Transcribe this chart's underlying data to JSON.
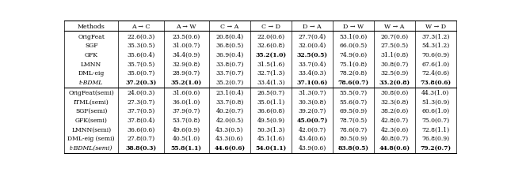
{
  "col_headers": [
    "Methods",
    "A → C",
    "A → W",
    "C → A",
    "C → D",
    "D → A",
    "D → W",
    "W → A",
    "W → D"
  ],
  "rows_top": [
    [
      "OrigFeat",
      "22.6(0.3)",
      "23.5(0.6)",
      "20.8(0.4)",
      "22.0(0.6)",
      "27.7(0.4)",
      "53.1(0.6)",
      "20.7(0.6)",
      "37.3(1.2)"
    ],
    [
      "SGF",
      "35.3(0.5)",
      "31.0(0.7)",
      "36.8(0.5)",
      "32.6(0.8)",
      "32.0(0.4)",
      "66.0(0.5)",
      "27.5(0.5)",
      "54.3(1.2)"
    ],
    [
      "GFK",
      "35.6(0.4)",
      "34.4(0.9)",
      "36.9(0.4)",
      "35.2(1.0)",
      "32.5(0.5)",
      "74.9(0.6)",
      "31.1(0.8)",
      "70.6(0.9)"
    ],
    [
      "LMNN",
      "35.7(0.5)",
      "32.9(0.8)",
      "33.8(0.7)",
      "31.5(1.6)",
      "33.7(0.4)",
      "75.1(0.8)",
      "30.8(0.7)",
      "67.6(1.0)"
    ],
    [
      "DML-eig",
      "35.0(0.7)",
      "28.9(0.7)",
      "33.7(0.7)",
      "32.7(1.3)",
      "33.4(0.3)",
      "78.2(0.8)",
      "32.5(0.9)",
      "72.4(0.6)"
    ],
    [
      "t-BDML",
      "37.2(0.3)",
      "35.2(1.0)",
      "35.2(0.7)",
      "33.4(1.3)",
      "37.1(0.6)",
      "78.6(0.7)",
      "33.2(0.8)",
      "73.8(0.6)"
    ]
  ],
  "rows_bottom": [
    [
      "OrigFeat(semi)",
      "24.0(0.3)",
      "31.6(0.6)",
      "23.1(0.4)",
      "26.5(0.7)",
      "31.3(0.7)",
      "55.5(0.7)",
      "30.8(0.6)",
      "44.3(1.0)"
    ],
    [
      "ITML(semi)",
      "27.3(0.7)",
      "36.0(1.0)",
      "33.7(0.8)",
      "35.0(1.1)",
      "30.3(0.8)",
      "55.6(0.7)",
      "32.3(0.8)",
      "51.3(0.9)"
    ],
    [
      "SGF(semi)",
      "37.7(0.5)",
      "37.9(0.7)",
      "40.2(0.7)",
      "36.6(0.8)",
      "39.2(0.7)",
      "69.5(0.9)",
      "38.2(0.6)",
      "60.6(1.0)"
    ],
    [
      "GFK(semi)",
      "37.8(0.4)",
      "53.7(0.8)",
      "42.0(0.5)",
      "49.5(0.9)",
      "45.0(0.7)",
      "78.7(0.5)",
      "42.8(0.7)",
      "75.0(0.7)"
    ],
    [
      "LMNN(semi)",
      "36.6(0.6)",
      "49.6(0.9)",
      "43.3(0.5)",
      "50.3(1.3)",
      "42.0(0.7)",
      "78.6(0.7)",
      "42.3(0.6)",
      "72.8(1.1)"
    ],
    [
      "DML-eig (semi)",
      "27.8(0.7)",
      "40.5(1.0)",
      "43.3(0.6)",
      "45.1(1.6)",
      "43.4(0.6)",
      "80.5(0.9)",
      "40.8(0.7)",
      "76.8(0.9)"
    ],
    [
      "t-BDML(semi)",
      "38.8(0.3)",
      "55.8(1.1)",
      "44.6(0.6)",
      "54.0(1.1)",
      "43.9(0.6)",
      "83.8(0.5)",
      "44.8(0.6)",
      "79.2(0.7)"
    ]
  ],
  "bold_top": [
    [
      false,
      false,
      false,
      false,
      false,
      false,
      false,
      false
    ],
    [
      false,
      false,
      false,
      false,
      false,
      false,
      false,
      false
    ],
    [
      false,
      false,
      false,
      true,
      true,
      false,
      false,
      false
    ],
    [
      false,
      false,
      false,
      false,
      false,
      false,
      false,
      false
    ],
    [
      false,
      false,
      false,
      false,
      false,
      false,
      false,
      false
    ],
    [
      true,
      true,
      false,
      false,
      true,
      true,
      true,
      true
    ]
  ],
  "bold_bottom": [
    [
      false,
      false,
      false,
      false,
      false,
      false,
      false,
      false
    ],
    [
      false,
      false,
      false,
      false,
      false,
      false,
      false,
      false
    ],
    [
      false,
      false,
      false,
      false,
      false,
      false,
      false,
      false
    ],
    [
      false,
      false,
      false,
      false,
      true,
      false,
      false,
      false
    ],
    [
      false,
      false,
      false,
      false,
      false,
      false,
      false,
      false
    ],
    [
      false,
      false,
      false,
      false,
      false,
      false,
      false,
      false
    ],
    [
      true,
      true,
      true,
      true,
      false,
      true,
      true,
      true
    ]
  ],
  "italic_top": [
    false,
    false,
    false,
    false,
    false,
    true
  ],
  "italic_bottom": [
    false,
    false,
    false,
    false,
    false,
    false,
    true
  ],
  "fig_width": 6.4,
  "fig_height": 2.18,
  "dpi": 100,
  "font_size": 5.5,
  "bg_color": "#ffffff"
}
